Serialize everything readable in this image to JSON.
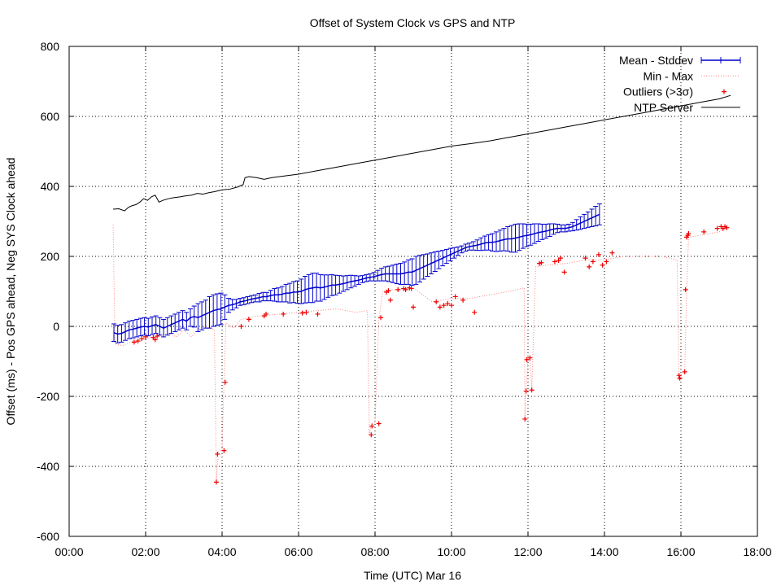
{
  "chart_data": {
    "type": "line",
    "title": "Offset of System Clock vs GPS and NTP",
    "xlabel": "Time (UTC) Mar 16",
    "ylabel": "Offset (ms) - Pos GPS ahead, Neg SYS Clock ahead",
    "xlim": [
      0,
      18
    ],
    "ylim": [
      -600,
      800
    ],
    "x_ticks": [
      {
        "v": 0,
        "label": "00:00"
      },
      {
        "v": 2,
        "label": "02:00"
      },
      {
        "v": 4,
        "label": "04:00"
      },
      {
        "v": 6,
        "label": "06:00"
      },
      {
        "v": 8,
        "label": "08:00"
      },
      {
        "v": 10,
        "label": "10:00"
      },
      {
        "v": 12,
        "label": "12:00"
      },
      {
        "v": 14,
        "label": "14:00"
      },
      {
        "v": 16,
        "label": "16:00"
      },
      {
        "v": 18,
        "label": "18:00"
      }
    ],
    "y_ticks": [
      {
        "v": -600,
        "label": "-600"
      },
      {
        "v": -400,
        "label": "-400"
      },
      {
        "v": -200,
        "label": "-200"
      },
      {
        "v": 0,
        "label": "0"
      },
      {
        "v": 200,
        "label": "200"
      },
      {
        "v": 400,
        "label": "400"
      },
      {
        "v": 600,
        "label": "600"
      },
      {
        "v": 800,
        "label": "800"
      }
    ],
    "grid": true,
    "legend_position": "top-right",
    "legend": [
      {
        "key": "mean",
        "label": "Mean - Stddev",
        "color": "#0000cc",
        "style": "errorbar"
      },
      {
        "key": "minmax",
        "label": "Min - Max",
        "color": "#ff8080",
        "style": "dotted"
      },
      {
        "key": "outliers",
        "label": "Outliers (>3σ)",
        "color": "#ee0000",
        "style": "plus"
      },
      {
        "key": "ntp",
        "label": "NTP Server",
        "color": "#000000",
        "style": "line"
      }
    ],
    "series": {
      "mean": {
        "x0": 1.17,
        "dx": 0.1,
        "mean": [
          -18,
          -22,
          -20,
          -15,
          -10,
          -8,
          -5,
          -2,
          0,
          -2,
          2,
          5,
          0,
          -5,
          0,
          5,
          10,
          15,
          20,
          15,
          25,
          28,
          25,
          30,
          35,
          40,
          45,
          48,
          50,
          55,
          60,
          62,
          65,
          70,
          72,
          75,
          78,
          80,
          82,
          85,
          85,
          88,
          90,
          90,
          92,
          95,
          95,
          98,
          98,
          100,
          105,
          108,
          110,
          112,
          110,
          112,
          115,
          118,
          118,
          120,
          122,
          125,
          128,
          130,
          132,
          135,
          138,
          140,
          142,
          145,
          148,
          150,
          150,
          150,
          150,
          150,
          152,
          155,
          155,
          160,
          165,
          170,
          175,
          180,
          185,
          190,
          195,
          200,
          205,
          210,
          215,
          220,
          225,
          228,
          230,
          232,
          235,
          238,
          240,
          240,
          242,
          245,
          248,
          250,
          250,
          252,
          255,
          258,
          260,
          262,
          265,
          268,
          270,
          272,
          275,
          278,
          280,
          280,
          280,
          282,
          285,
          290,
          295,
          300,
          305,
          310,
          315,
          320
        ],
        "sd": [
          25,
          25,
          25,
          25,
          25,
          25,
          25,
          25,
          25,
          25,
          25,
          25,
          25,
          25,
          25,
          25,
          25,
          25,
          25,
          25,
          25,
          30,
          40,
          40,
          40,
          45,
          45,
          45,
          45,
          35,
          20,
          15,
          12,
          10,
          10,
          10,
          10,
          10,
          12,
          12,
          12,
          15,
          18,
          20,
          22,
          25,
          28,
          30,
          32,
          35,
          38,
          40,
          42,
          40,
          38,
          35,
          32,
          30,
          28,
          25,
          22,
          20,
          18,
          15,
          12,
          10,
          10,
          10,
          12,
          15,
          18,
          20,
          22,
          25,
          28,
          30,
          32,
          35,
          38,
          40,
          38,
          35,
          32,
          30,
          28,
          25,
          22,
          20,
          18,
          15,
          12,
          10,
          10,
          10,
          12,
          15,
          18,
          20,
          22,
          25,
          28,
          30,
          32,
          35,
          38,
          40,
          38,
          35,
          32,
          30,
          28,
          25,
          22,
          20,
          18,
          15,
          12,
          10,
          10,
          10,
          12,
          15,
          18,
          20,
          22,
          25,
          28,
          30
        ]
      },
      "minmax": [
        [
          1.15,
          290
        ],
        [
          1.2,
          -50
        ],
        [
          1.4,
          -55
        ],
        [
          1.6,
          -45
        ],
        [
          1.8,
          -40
        ],
        [
          2.0,
          -35
        ],
        [
          2.2,
          -30
        ],
        [
          2.4,
          -25
        ],
        [
          2.6,
          -20
        ],
        [
          2.8,
          -30
        ],
        [
          3.0,
          -10
        ],
        [
          3.2,
          -30
        ],
        [
          3.4,
          -5
        ],
        [
          3.6,
          0
        ],
        [
          3.8,
          -10
        ],
        [
          3.85,
          -440
        ],
        [
          3.9,
          -360
        ],
        [
          4.0,
          -350
        ],
        [
          4.05,
          -160
        ],
        [
          4.1,
          10
        ],
        [
          4.3,
          -5
        ],
        [
          4.5,
          20
        ],
        [
          4.7,
          25
        ],
        [
          5.0,
          30
        ],
        [
          5.5,
          35
        ],
        [
          6.0,
          40
        ],
        [
          6.5,
          45
        ],
        [
          7.0,
          50
        ],
        [
          7.5,
          40
        ],
        [
          7.8,
          45
        ],
        [
          7.85,
          -310
        ],
        [
          7.9,
          -280
        ],
        [
          8.0,
          -275
        ],
        [
          8.1,
          20
        ],
        [
          8.2,
          100
        ],
        [
          8.5,
          105
        ],
        [
          9.0,
          110
        ],
        [
          9.5,
          70
        ],
        [
          10.0,
          80
        ],
        [
          10.5,
          80
        ],
        [
          11.0,
          90
        ],
        [
          11.5,
          100
        ],
        [
          11.9,
          110
        ],
        [
          11.92,
          -265
        ],
        [
          11.95,
          -180
        ],
        [
          12.0,
          -95
        ],
        [
          12.05,
          -90
        ],
        [
          12.1,
          -180
        ],
        [
          12.2,
          170
        ],
        [
          12.5,
          175
        ],
        [
          13.0,
          180
        ],
        [
          13.5,
          190
        ],
        [
          14.0,
          190
        ],
        [
          14.5,
          200
        ],
        [
          15.0,
          200
        ],
        [
          15.5,
          200
        ],
        [
          15.9,
          190
        ],
        [
          15.95,
          -150
        ],
        [
          16.0,
          -140
        ],
        [
          16.1,
          -130
        ],
        [
          16.15,
          105
        ],
        [
          16.2,
          255
        ],
        [
          16.5,
          260
        ],
        [
          17.0,
          270
        ],
        [
          17.2,
          280
        ]
      ],
      "outliers": [
        [
          1.7,
          -45
        ],
        [
          1.8,
          -42
        ],
        [
          1.9,
          -35
        ],
        [
          2.0,
          -30
        ],
        [
          2.2,
          -32
        ],
        [
          2.25,
          -38
        ],
        [
          2.3,
          -28
        ],
        [
          3.85,
          -445
        ],
        [
          3.88,
          -365
        ],
        [
          4.05,
          -355
        ],
        [
          4.08,
          -160
        ],
        [
          4.5,
          0
        ],
        [
          4.7,
          20
        ],
        [
          5.1,
          30
        ],
        [
          5.15,
          35
        ],
        [
          5.6,
          35
        ],
        [
          6.1,
          38
        ],
        [
          6.2,
          40
        ],
        [
          6.5,
          35
        ],
        [
          7.9,
          -310
        ],
        [
          7.92,
          -285
        ],
        [
          8.1,
          -278
        ],
        [
          8.15,
          25
        ],
        [
          8.3,
          98
        ],
        [
          8.35,
          102
        ],
        [
          8.4,
          75
        ],
        [
          8.6,
          105
        ],
        [
          8.75,
          108
        ],
        [
          8.8,
          105
        ],
        [
          8.9,
          110
        ],
        [
          8.95,
          108
        ],
        [
          9.0,
          55
        ],
        [
          9.6,
          70
        ],
        [
          9.7,
          55
        ],
        [
          9.8,
          60
        ],
        [
          9.9,
          65
        ],
        [
          10.0,
          60
        ],
        [
          10.1,
          85
        ],
        [
          10.3,
          75
        ],
        [
          10.6,
          40
        ],
        [
          11.92,
          -265
        ],
        [
          11.95,
          -185
        ],
        [
          11.97,
          -95
        ],
        [
          12.05,
          -90
        ],
        [
          12.1,
          -182
        ],
        [
          12.3,
          180
        ],
        [
          12.35,
          182
        ],
        [
          12.7,
          185
        ],
        [
          12.8,
          188
        ],
        [
          12.85,
          195
        ],
        [
          12.95,
          155
        ],
        [
          13.5,
          195
        ],
        [
          13.6,
          170
        ],
        [
          13.7,
          185
        ],
        [
          13.85,
          205
        ],
        [
          13.95,
          175
        ],
        [
          14.05,
          185
        ],
        [
          14.2,
          210
        ],
        [
          15.95,
          -140
        ],
        [
          15.97,
          -148
        ],
        [
          16.1,
          -130
        ],
        [
          16.12,
          105
        ],
        [
          16.15,
          255
        ],
        [
          16.18,
          260
        ],
        [
          16.2,
          265
        ],
        [
          16.6,
          270
        ],
        [
          16.95,
          280
        ],
        [
          17.05,
          285
        ],
        [
          17.1,
          280
        ],
        [
          17.15,
          285
        ],
        [
          17.2,
          282
        ]
      ],
      "ntp": [
        [
          1.15,
          335
        ],
        [
          1.3,
          336
        ],
        [
          1.45,
          330
        ],
        [
          1.55,
          340
        ],
        [
          1.65,
          345
        ],
        [
          1.75,
          348
        ],
        [
          1.85,
          355
        ],
        [
          1.95,
          365
        ],
        [
          2.05,
          360
        ],
        [
          2.15,
          370
        ],
        [
          2.25,
          375
        ],
        [
          2.35,
          355
        ],
        [
          2.45,
          360
        ],
        [
          2.6,
          365
        ],
        [
          2.75,
          368
        ],
        [
          2.9,
          370
        ],
        [
          3.0,
          372
        ],
        [
          3.2,
          375
        ],
        [
          3.35,
          380
        ],
        [
          3.5,
          378
        ],
        [
          3.65,
          382
        ],
        [
          3.8,
          385
        ],
        [
          4.0,
          390
        ],
        [
          4.2,
          392
        ],
        [
          4.4,
          398
        ],
        [
          4.55,
          405
        ],
        [
          4.6,
          425
        ],
        [
          4.7,
          428
        ],
        [
          4.9,
          425
        ],
        [
          5.1,
          420
        ],
        [
          5.3,
          425
        ],
        [
          5.5,
          428
        ],
        [
          6.0,
          435
        ],
        [
          6.5,
          445
        ],
        [
          7.0,
          455
        ],
        [
          7.5,
          465
        ],
        [
          8.0,
          475
        ],
        [
          8.5,
          485
        ],
        [
          9.0,
          495
        ],
        [
          9.5,
          505
        ],
        [
          10.0,
          515
        ],
        [
          10.5,
          522
        ],
        [
          11.0,
          530
        ],
        [
          11.5,
          540
        ],
        [
          12.0,
          550
        ],
        [
          12.5,
          560
        ],
        [
          13.0,
          570
        ],
        [
          13.5,
          580
        ],
        [
          14.0,
          590
        ],
        [
          14.5,
          600
        ],
        [
          15.0,
          610
        ],
        [
          15.5,
          620
        ],
        [
          16.0,
          630
        ],
        [
          16.5,
          640
        ],
        [
          17.0,
          650
        ],
        [
          17.3,
          660
        ]
      ]
    }
  }
}
